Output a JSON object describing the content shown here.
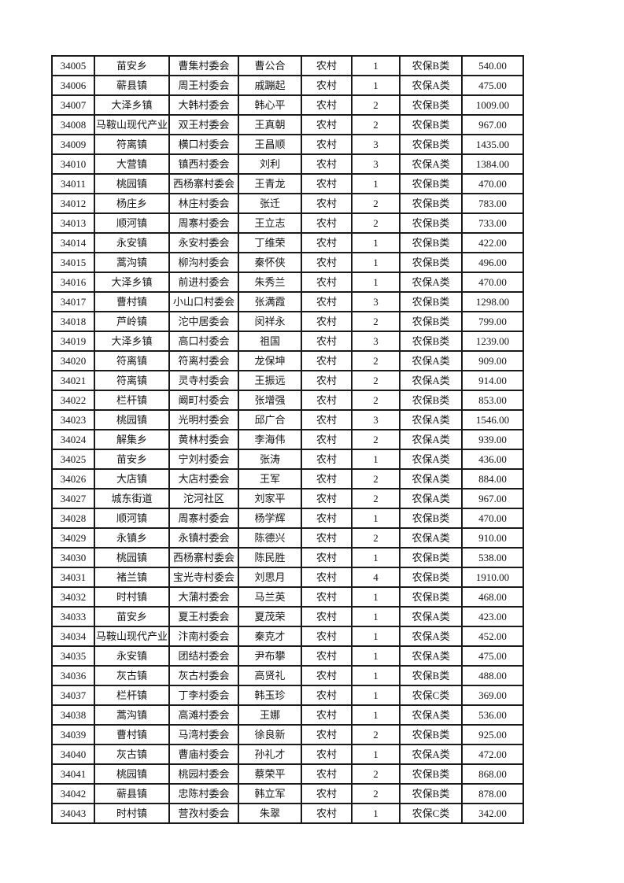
{
  "table": {
    "rows": [
      {
        "id": "34005",
        "town": "苗安乡",
        "village": "曹集村委会",
        "person": "曹公合",
        "residence": "农村",
        "count": "1",
        "category": "农保B类",
        "amount": "540.00"
      },
      {
        "id": "34006",
        "town": "蕲县镇",
        "village": "周王村委会",
        "person": "戚蹦起",
        "residence": "农村",
        "count": "1",
        "category": "农保A类",
        "amount": "475.00"
      },
      {
        "id": "34007",
        "town": "大泽乡镇",
        "village": "大韩村委会",
        "person": "韩心平",
        "residence": "农村",
        "count": "2",
        "category": "农保B类",
        "amount": "1009.00"
      },
      {
        "id": "34008",
        "town": "马鞍山现代产业",
        "village": "双王村委会",
        "person": "王真朝",
        "residence": "农村",
        "count": "2",
        "category": "农保B类",
        "amount": "967.00"
      },
      {
        "id": "34009",
        "town": "符离镇",
        "village": "横口村委会",
        "person": "王昌顺",
        "residence": "农村",
        "count": "3",
        "category": "农保B类",
        "amount": "1435.00"
      },
      {
        "id": "34010",
        "town": "大营镇",
        "village": "镇西村委会",
        "person": "刘利",
        "residence": "农村",
        "count": "3",
        "category": "农保A类",
        "amount": "1384.00"
      },
      {
        "id": "34011",
        "town": "桃园镇",
        "village": "西杨寨村委会",
        "person": "王青龙",
        "residence": "农村",
        "count": "1",
        "category": "农保B类",
        "amount": "470.00"
      },
      {
        "id": "34012",
        "town": "杨庄乡",
        "village": "林庄村委会",
        "person": "张迁",
        "residence": "农村",
        "count": "2",
        "category": "农保B类",
        "amount": "783.00"
      },
      {
        "id": "34013",
        "town": "顺河镇",
        "village": "周寨村委会",
        "person": "王立志",
        "residence": "农村",
        "count": "2",
        "category": "农保B类",
        "amount": "733.00"
      },
      {
        "id": "34014",
        "town": "永安镇",
        "village": "永安村委会",
        "person": "丁维荣",
        "residence": "农村",
        "count": "1",
        "category": "农保B类",
        "amount": "422.00"
      },
      {
        "id": "34015",
        "town": "蒿沟镇",
        "village": "柳沟村委会",
        "person": "秦怀侠",
        "residence": "农村",
        "count": "1",
        "category": "农保B类",
        "amount": "496.00"
      },
      {
        "id": "34016",
        "town": "大泽乡镇",
        "village": "前进村委会",
        "person": "朱秀兰",
        "residence": "农村",
        "count": "1",
        "category": "农保A类",
        "amount": "470.00"
      },
      {
        "id": "34017",
        "town": "曹村镇",
        "village": "小山口村委会",
        "person": "张满霞",
        "residence": "农村",
        "count": "3",
        "category": "农保B类",
        "amount": "1298.00"
      },
      {
        "id": "34018",
        "town": "芦岭镇",
        "village": "沱中居委会",
        "person": "闵祥永",
        "residence": "农村",
        "count": "2",
        "category": "农保B类",
        "amount": "799.00"
      },
      {
        "id": "34019",
        "town": "大泽乡镇",
        "village": "高口村委会",
        "person": "祖国",
        "residence": "农村",
        "count": "3",
        "category": "农保B类",
        "amount": "1239.00"
      },
      {
        "id": "34020",
        "town": "符离镇",
        "village": "符离村委会",
        "person": "龙保坤",
        "residence": "农村",
        "count": "2",
        "category": "农保A类",
        "amount": "909.00"
      },
      {
        "id": "34021",
        "town": "符离镇",
        "village": "灵寺村委会",
        "person": "王振远",
        "residence": "农村",
        "count": "2",
        "category": "农保A类",
        "amount": "914.00"
      },
      {
        "id": "34022",
        "town": "栏杆镇",
        "village": "阚町村委会",
        "person": "张增强",
        "residence": "农村",
        "count": "2",
        "category": "农保B类",
        "amount": "853.00"
      },
      {
        "id": "34023",
        "town": "桃园镇",
        "village": "光明村委会",
        "person": "邱广合",
        "residence": "农村",
        "count": "3",
        "category": "农保A类",
        "amount": "1546.00"
      },
      {
        "id": "34024",
        "town": "解集乡",
        "village": "黄林村委会",
        "person": "李海伟",
        "residence": "农村",
        "count": "2",
        "category": "农保A类",
        "amount": "939.00"
      },
      {
        "id": "34025",
        "town": "苗安乡",
        "village": "宁刘村委会",
        "person": "张涛",
        "residence": "农村",
        "count": "1",
        "category": "农保A类",
        "amount": "436.00"
      },
      {
        "id": "34026",
        "town": "大店镇",
        "village": "大店村委会",
        "person": "王军",
        "residence": "农村",
        "count": "2",
        "category": "农保A类",
        "amount": "884.00"
      },
      {
        "id": "34027",
        "town": "城东街道",
        "village": "沱河社区",
        "person": "刘家平",
        "residence": "农村",
        "count": "2",
        "category": "农保A类",
        "amount": "967.00"
      },
      {
        "id": "34028",
        "town": "顺河镇",
        "village": "周寨村委会",
        "person": "杨学辉",
        "residence": "农村",
        "count": "1",
        "category": "农保B类",
        "amount": "470.00"
      },
      {
        "id": "34029",
        "town": "永镇乡",
        "village": "永镇村委会",
        "person": "陈德兴",
        "residence": "农村",
        "count": "2",
        "category": "农保A类",
        "amount": "910.00"
      },
      {
        "id": "34030",
        "town": "桃园镇",
        "village": "西杨寨村委会",
        "person": "陈民胜",
        "residence": "农村",
        "count": "1",
        "category": "农保B类",
        "amount": "538.00"
      },
      {
        "id": "34031",
        "town": "褚兰镇",
        "village": "宝光寺村委会",
        "person": "刘思月",
        "residence": "农村",
        "count": "4",
        "category": "农保B类",
        "amount": "1910.00"
      },
      {
        "id": "34032",
        "town": "时村镇",
        "village": "大蒲村委会",
        "person": "马兰英",
        "residence": "农村",
        "count": "1",
        "category": "农保B类",
        "amount": "468.00"
      },
      {
        "id": "34033",
        "town": "苗安乡",
        "village": "夏王村委会",
        "person": "夏茂荣",
        "residence": "农村",
        "count": "1",
        "category": "农保A类",
        "amount": "423.00"
      },
      {
        "id": "34034",
        "town": "马鞍山现代产业",
        "village": "汴南村委会",
        "person": "秦克才",
        "residence": "农村",
        "count": "1",
        "category": "农保A类",
        "amount": "452.00"
      },
      {
        "id": "34035",
        "town": "永安镇",
        "village": "团结村委会",
        "person": "尹布攀",
        "residence": "农村",
        "count": "1",
        "category": "农保A类",
        "amount": "475.00"
      },
      {
        "id": "34036",
        "town": "灰古镇",
        "village": "灰古村委会",
        "person": "高贤礼",
        "residence": "农村",
        "count": "1",
        "category": "农保B类",
        "amount": "488.00"
      },
      {
        "id": "34037",
        "town": "栏杆镇",
        "village": "丁李村委会",
        "person": "韩玉珍",
        "residence": "农村",
        "count": "1",
        "category": "农保C类",
        "amount": "369.00"
      },
      {
        "id": "34038",
        "town": "蒿沟镇",
        "village": "高滩村委会",
        "person": "王娜",
        "residence": "农村",
        "count": "1",
        "category": "农保A类",
        "amount": "536.00"
      },
      {
        "id": "34039",
        "town": "曹村镇",
        "village": "马湾村委会",
        "person": "徐良新",
        "residence": "农村",
        "count": "2",
        "category": "农保B类",
        "amount": "925.00"
      },
      {
        "id": "34040",
        "town": "灰古镇",
        "village": "曹庙村委会",
        "person": "孙礼才",
        "residence": "农村",
        "count": "1",
        "category": "农保A类",
        "amount": "472.00"
      },
      {
        "id": "34041",
        "town": "桃园镇",
        "village": "桃园村委会",
        "person": "蔡荣平",
        "residence": "农村",
        "count": "2",
        "category": "农保B类",
        "amount": "868.00"
      },
      {
        "id": "34042",
        "town": "蕲县镇",
        "village": "忠陈村委会",
        "person": "韩立军",
        "residence": "农村",
        "count": "2",
        "category": "农保B类",
        "amount": "878.00"
      },
      {
        "id": "34043",
        "town": "时村镇",
        "village": "营孜村委会",
        "person": "朱翠",
        "residence": "农村",
        "count": "1",
        "category": "农保C类",
        "amount": "342.00"
      }
    ]
  }
}
